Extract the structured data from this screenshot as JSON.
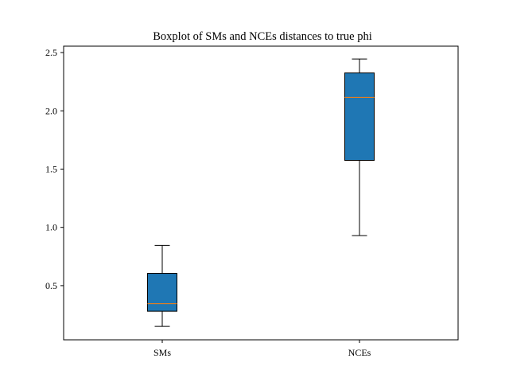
{
  "chart_data": {
    "type": "boxplot",
    "title": "Boxplot of SMs and NCEs distances to true phi",
    "xlabel": "",
    "ylabel": "",
    "categories": [
      "SMs",
      "NCEs"
    ],
    "boxes": [
      {
        "name": "SMs",
        "whisker_low": 0.15,
        "q1": 0.28,
        "median": 0.345,
        "q3": 0.605,
        "whisker_high": 0.845
      },
      {
        "name": "NCEs",
        "whisker_low": 0.93,
        "q1": 1.575,
        "median": 2.115,
        "q3": 2.325,
        "whisker_high": 2.445
      }
    ],
    "y_ticks": [
      0.5,
      1.0,
      1.5,
      2.0,
      2.5
    ],
    "y_tick_labels": [
      "0.5",
      "1.0",
      "1.5",
      "2.0",
      "2.5"
    ],
    "ylim": [
      0.035,
      2.555
    ],
    "grid": false,
    "box_color": "#1f77b4",
    "median_color": "#ff7f0e"
  }
}
